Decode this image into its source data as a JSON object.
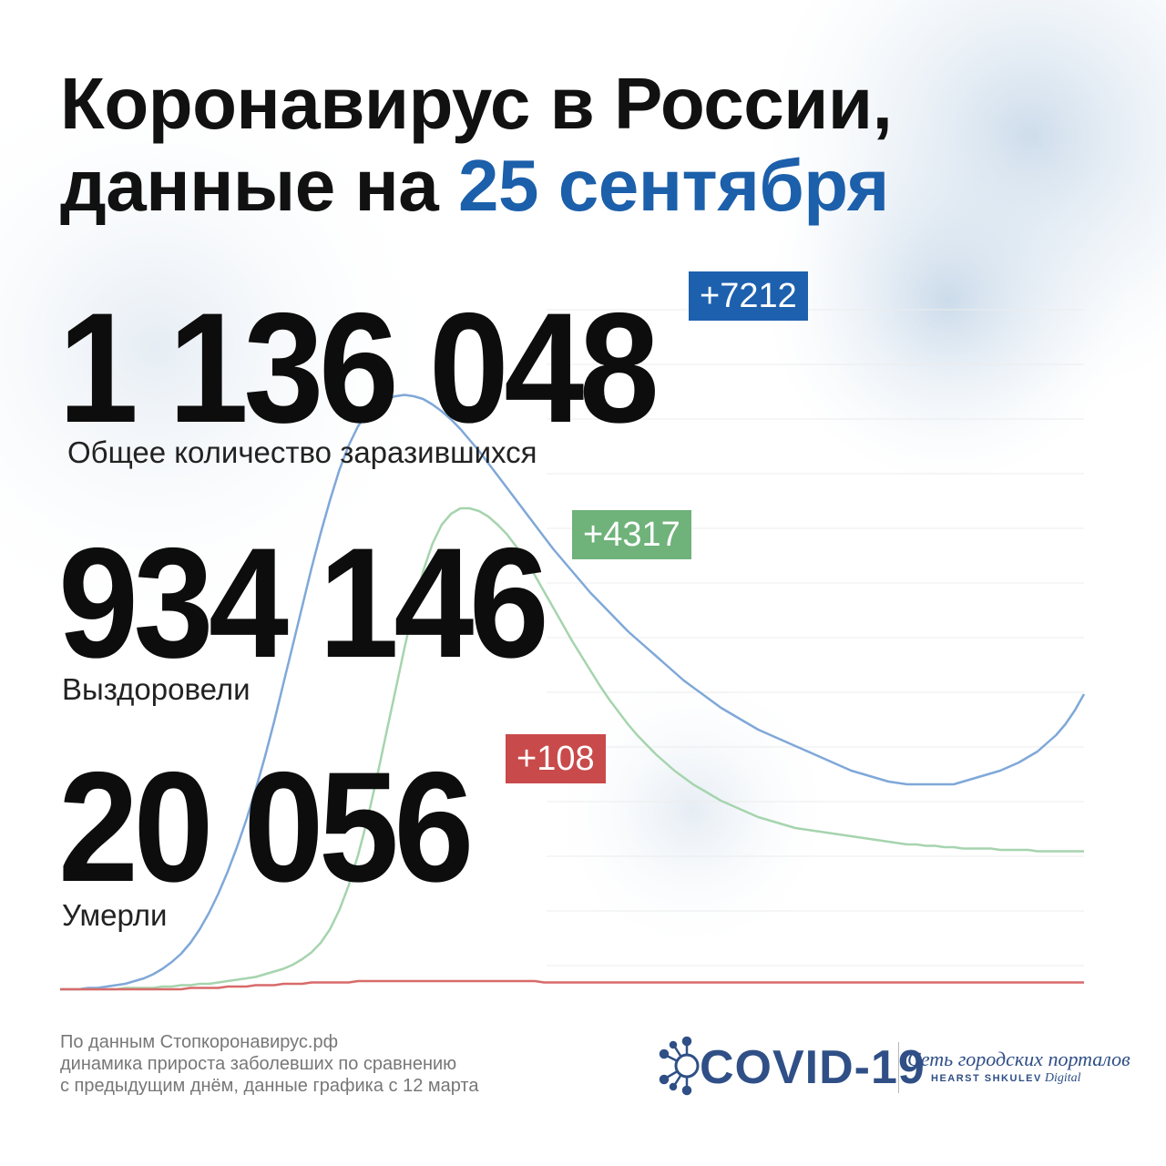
{
  "title": {
    "line1": "Коронавирус в России,",
    "line2_prefix": "данные на ",
    "line2_date": "25 сентября"
  },
  "stats": {
    "total": {
      "value": "1 136 048",
      "delta": "+7212",
      "label": "Общее количество заразившихся"
    },
    "recovered": {
      "value": "934 146",
      "delta": "+4317",
      "label": "Выздоровели"
    },
    "deaths": {
      "value": "20 056",
      "delta": "+108",
      "label": "Умерли"
    }
  },
  "footnote": {
    "line1": "По данным Стопкоронавирус.рф",
    "line2": "динамика прироста заболевших по сравнению",
    "line3": "с предыдущим днём, данные графика с 12 марта"
  },
  "logo": {
    "covid": "COVID-19",
    "network": "Сеть городских порталов",
    "brand_bold": "HEARST SHKULEV",
    "brand_italic": "Digital"
  },
  "colors": {
    "accent_blue": "#1c5faa",
    "badge_blue": "#1d60ae",
    "badge_green": "#6fb27a",
    "badge_red": "#c84a4a",
    "line_cases": "#7fa8d8",
    "line_recovered": "#a6d4ae",
    "line_deaths": "#d86a6a"
  },
  "chart_data": {
    "type": "line",
    "xlabel": "",
    "ylabel": "",
    "grid": true,
    "series": [
      {
        "values": [
          0,
          0,
          0,
          1,
          1,
          2,
          3,
          4,
          6,
          8,
          11,
          15,
          20,
          26,
          34,
          44,
          56,
          70,
          86,
          104,
          124,
          146,
          170,
          196,
          224,
          252,
          280,
          308,
          334,
          358,
          380,
          398,
          412,
          422,
          428,
          432,
          434,
          435,
          434,
          432,
          428,
          423,
          417,
          410,
          402,
          394,
          385,
          376,
          367,
          358,
          349,
          340,
          331,
          322,
          314,
          306,
          298,
          290,
          283,
          276,
          269,
          262,
          256,
          250,
          244,
          238,
          232,
          226,
          221,
          216,
          211,
          206,
          202,
          198,
          194,
          190,
          187,
          184,
          181,
          178,
          175,
          172,
          169,
          166,
          163,
          160,
          158,
          156,
          154,
          152,
          151,
          150,
          150,
          150,
          150,
          150,
          150,
          152,
          154,
          156,
          158,
          160,
          163,
          166,
          170,
          174,
          180,
          186,
          194,
          204,
          216
        ]
      },
      {
        "values": [
          0,
          0,
          0,
          0,
          0,
          0,
          0,
          1,
          1,
          1,
          1,
          2,
          2,
          3,
          3,
          4,
          4,
          5,
          6,
          7,
          8,
          9,
          11,
          13,
          15,
          18,
          22,
          27,
          34,
          44,
          58,
          76,
          98,
          124,
          154,
          186,
          218,
          250,
          280,
          306,
          326,
          340,
          348,
          352,
          352,
          350,
          346,
          340,
          333,
          324,
          314,
          303,
          291,
          279,
          267,
          255,
          244,
          233,
          222,
          212,
          203,
          194,
          186,
          179,
          172,
          166,
          160,
          155,
          150,
          146,
          142,
          138,
          135,
          132,
          129,
          126,
          124,
          122,
          120,
          118,
          117,
          116,
          115,
          114,
          113,
          112,
          111,
          110,
          109,
          108,
          107,
          106,
          106,
          105,
          105,
          104,
          104,
          103,
          103,
          103,
          103,
          102,
          102,
          102,
          102,
          101,
          101,
          101,
          101,
          101,
          101
        ]
      },
      {
        "values": [
          0,
          0,
          0,
          0,
          0,
          0,
          0,
          0,
          0,
          0,
          0,
          0,
          0,
          0,
          1,
          1,
          1,
          1,
          2,
          2,
          2,
          3,
          3,
          3,
          4,
          4,
          4,
          5,
          5,
          5,
          5,
          5,
          6,
          6,
          6,
          6,
          6,
          6,
          6,
          6,
          6,
          6,
          6,
          6,
          6,
          6,
          6,
          6,
          6,
          6,
          6,
          6,
          5,
          5,
          5,
          5,
          5,
          5,
          5,
          5,
          5,
          5,
          5,
          5,
          5,
          5,
          5,
          5,
          5,
          5,
          5,
          5,
          5,
          5,
          5,
          5,
          5,
          5,
          5,
          5,
          5,
          5,
          5,
          5,
          5,
          5,
          5,
          5,
          5,
          5,
          5,
          5,
          5,
          5,
          5,
          5,
          5,
          5,
          5,
          5,
          5,
          5,
          5,
          5,
          5,
          5,
          5,
          5,
          5,
          5,
          5
        ]
      }
    ]
  }
}
